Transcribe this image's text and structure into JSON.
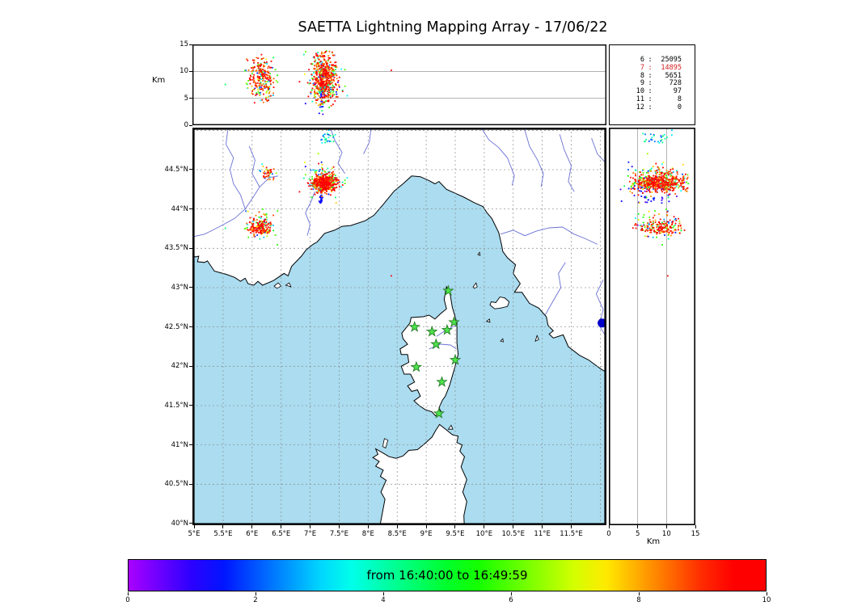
{
  "title": "SAETTA Lightning Mapping Array - 17/06/22",
  "axes": {
    "alt_axis_label": "Km",
    "km_axis_label": "Km",
    "alt_ticks": [
      {
        "v": 0,
        "label": "0"
      },
      {
        "v": 5,
        "label": "5"
      },
      {
        "v": 10,
        "label": "10"
      },
      {
        "v": 15,
        "label": "15"
      }
    ],
    "km_ticks": [
      {
        "v": 0,
        "label": "0"
      },
      {
        "v": 5,
        "label": "5"
      },
      {
        "v": 10,
        "label": "10"
      },
      {
        "v": 15,
        "label": "15"
      }
    ],
    "lat_ticks": [
      {
        "v": 44.5,
        "label": "44.5°N"
      },
      {
        "v": 44,
        "label": "44°N"
      },
      {
        "v": 43.5,
        "label": "43.5°N"
      },
      {
        "v": 43,
        "label": "43°N"
      },
      {
        "v": 42.5,
        "label": "42.5°N"
      },
      {
        "v": 42,
        "label": "42°N"
      },
      {
        "v": 41.5,
        "label": "41.5°N"
      },
      {
        "v": 41,
        "label": "41°N"
      },
      {
        "v": 40.5,
        "label": "40.5°N"
      },
      {
        "v": 40,
        "label": "40°N"
      }
    ],
    "lon_ticks": [
      {
        "v": 5,
        "label": "5°E"
      },
      {
        "v": 5.5,
        "label": "5.5°E"
      },
      {
        "v": 6,
        "label": "6°E"
      },
      {
        "v": 6.5,
        "label": "6.5°E"
      },
      {
        "v": 7,
        "label": "7°E"
      },
      {
        "v": 7.5,
        "label": "7.5°E"
      },
      {
        "v": 8,
        "label": "8°E"
      },
      {
        "v": 8.5,
        "label": "8.5°E"
      },
      {
        "v": 9,
        "label": "9°E"
      },
      {
        "v": 9.5,
        "label": "9.5°E"
      },
      {
        "v": 10,
        "label": "10°E"
      },
      {
        "v": 10.5,
        "label": "10.5°E"
      },
      {
        "v": 11,
        "label": "11°E"
      },
      {
        "v": 11.5,
        "label": "11.5°E"
      }
    ]
  },
  "stats": {
    "rows": [
      {
        "key": "6",
        "value": "25095",
        "highlight": false
      },
      {
        "key": "7",
        "value": "14895",
        "highlight": true
      },
      {
        "key": "8",
        "value": "5651",
        "highlight": false
      },
      {
        "key": "9",
        "value": "728",
        "highlight": false
      },
      {
        "key": "10",
        "value": "97",
        "highlight": false
      },
      {
        "key": "11",
        "value": "8",
        "highlight": false
      },
      {
        "key": "12",
        "value": "0",
        "highlight": false
      }
    ]
  },
  "colorbar": {
    "label": "from 16:40:00 to 16:49:59",
    "start_time": "16:40:00",
    "end_time": "16:49:59",
    "ticks": [
      "0",
      "2",
      "4",
      "6",
      "8",
      "10"
    ]
  },
  "colors": {
    "sea": "#abdcf0",
    "land": "#ffffff",
    "coast": "#000000",
    "river": "#5058cc",
    "grid": "#8a8a8a",
    "star_fill": "#4ce44c",
    "star_edge": "#257a25",
    "stats_highlight": "#d42020",
    "marker_dot": "#0000c8"
  },
  "chart_data": {
    "type": "scatter",
    "title": "SAETTA Lightning Mapping Array - 17/06/22",
    "date": "17/06/22",
    "time_window": "16:40:00 to 16:49:59",
    "panels": [
      {
        "id": "lon-altitude",
        "x": "longitude_deg_east",
        "y": "altitude_km",
        "xlim": [
          4.97,
          12.11
        ],
        "ylim": [
          0,
          15
        ],
        "yticks": [
          0,
          5,
          10,
          15
        ],
        "grid_km": [
          5,
          10
        ]
      },
      {
        "id": "map",
        "x": "longitude_deg_east",
        "y": "latitude_deg_north",
        "xlim": [
          4.97,
          12.11
        ],
        "ylim": [
          40.0,
          45.03
        ],
        "grid_step_deg": 0.5
      },
      {
        "id": "altitude-latitude",
        "x": "altitude_km",
        "y": "latitude_deg_north",
        "xlim": [
          0,
          15
        ],
        "ylim": [
          40.0,
          45.03
        ],
        "xticks": [
          0,
          5,
          10,
          15
        ],
        "grid_km": [
          5,
          10
        ]
      }
    ],
    "source_counts_by_level": {
      "6": 25095,
      "7": 14895,
      "8": 5651,
      "9": 728,
      "10": 97,
      "11": 8,
      "12": 0
    },
    "clusters": [
      {
        "name": "storm-main",
        "lon": 7.25,
        "lat": 44.33,
        "slon": 0.1,
        "slat": 0.055,
        "n": 520,
        "alt_mean": 8.8,
        "alt_sd": 2.3,
        "alt_min": 3.5,
        "alt_max": 13.8,
        "t_min": 0.78,
        "t_max": 1.0,
        "frac_early": 0.22
      },
      {
        "name": "storm-main-fringe",
        "lon": 7.25,
        "lat": 44.34,
        "slon": 0.21,
        "slat": 0.12,
        "n": 90,
        "alt_mean": 8.0,
        "alt_sd": 3.0,
        "alt_min": 2.0,
        "alt_max": 14.0,
        "t_min": 0.1,
        "t_max": 1.0,
        "frac_early": 0
      },
      {
        "name": "storm-west-small",
        "lon": 6.27,
        "lat": 44.45,
        "slon": 0.07,
        "slat": 0.05,
        "n": 48,
        "alt_mean": 8.5,
        "alt_sd": 2.0,
        "alt_min": 4.0,
        "alt_max": 12.5,
        "t_min": 0.75,
        "t_max": 1.0,
        "frac_early": 0.35
      },
      {
        "name": "storm-southwest",
        "lon": 6.14,
        "lat": 43.77,
        "slon": 0.09,
        "slat": 0.05,
        "n": 175,
        "alt_mean": 8.8,
        "alt_sd": 2.1,
        "alt_min": 4.0,
        "alt_max": 13.5,
        "t_min": 0.78,
        "t_max": 1.0,
        "frac_early": 0.22
      },
      {
        "name": "storm-southwest-fringe",
        "lon": 6.14,
        "lat": 43.78,
        "slon": 0.17,
        "slat": 0.1,
        "n": 40,
        "alt_mean": 8.5,
        "alt_sd": 2.6,
        "alt_min": 3.0,
        "alt_max": 13.0,
        "t_min": 0.1,
        "t_max": 1.0,
        "frac_early": 0
      },
      {
        "name": "north-early-blue",
        "lon": 7.33,
        "lat": 44.9,
        "slon": 0.07,
        "slat": 0.05,
        "n": 26,
        "alt_mean": 8.0,
        "alt_sd": 1.8,
        "alt_min": 5.0,
        "alt_max": 11.5,
        "t_min": 0.15,
        "t_max": 0.5,
        "frac_early": 0
      }
    ],
    "streaks": [
      {
        "name": "early-channel",
        "lon0": 7.22,
        "lat0": 44.3,
        "lon1": 7.17,
        "lat1": 44.07,
        "n": 38,
        "alt_mean": 7.0,
        "alt_sd": 2.2,
        "alt_min": 2.0,
        "alt_max": 12.0,
        "t_min": 0.04,
        "t_max": 0.16
      }
    ],
    "singles": [
      {
        "lon": 8.4,
        "lat": 43.15,
        "alt": 10.2,
        "t": 0.93
      }
    ],
    "stations_lon_lat": [
      [
        9.38,
        42.96
      ],
      [
        8.8,
        42.5
      ],
      [
        9.1,
        42.44
      ],
      [
        9.36,
        42.46
      ],
      [
        9.48,
        42.56
      ],
      [
        9.17,
        42.28
      ],
      [
        9.5,
        42.08
      ],
      [
        8.83,
        41.99
      ],
      [
        9.27,
        41.8
      ],
      [
        9.22,
        41.4
      ]
    ],
    "extra_marker": {
      "lon": 12.03,
      "lat": 42.55,
      "radius_px": 5.5
    }
  }
}
